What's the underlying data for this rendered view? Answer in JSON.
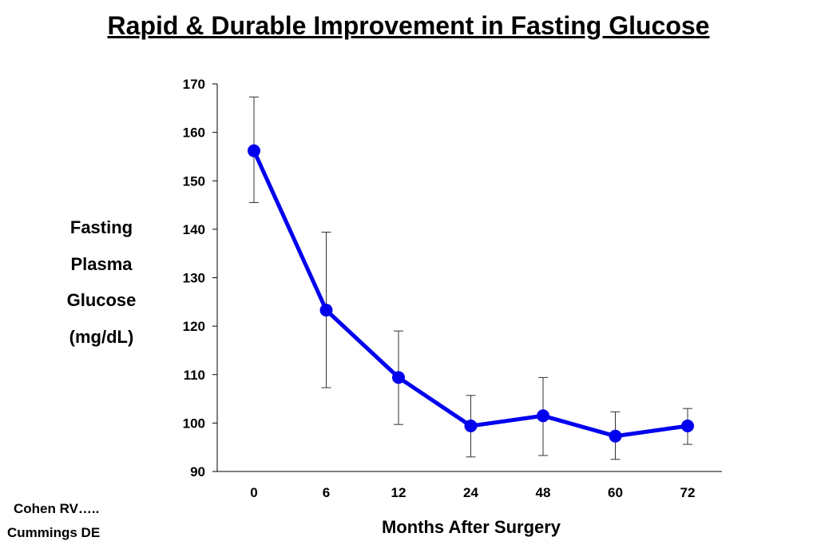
{
  "title": "Rapid & Durable Improvement in Fasting Glucose",
  "citations": [
    "Cohen RV…..",
    "Cummings DE"
  ],
  "colors": {
    "series": "#0000ee",
    "axis": "#000000"
  },
  "chart_data": {
    "type": "line",
    "title": "Rapid & Durable Improvement in Fasting Glucose",
    "xlabel": "Months After Surgery",
    "ylabel_lines": [
      "Fasting",
      "Plasma",
      "Glucose",
      "(mg/dL)"
    ],
    "categories": [
      "0",
      "6",
      "12",
      "24",
      "48",
      "60",
      "72"
    ],
    "series": [
      {
        "values": [
          156.2,
          123.3,
          109.4,
          99.4,
          101.5,
          97.3,
          99.4
        ],
        "error_upper": [
          167.3,
          139.4,
          119.0,
          105.7,
          109.4,
          102.3,
          103.0
        ],
        "error_lower": [
          145.5,
          107.3,
          99.7,
          93.0,
          93.3,
          92.5,
          95.6
        ]
      }
    ],
    "ylim": [
      90,
      170
    ],
    "yticks": [
      90,
      100,
      110,
      120,
      130,
      140,
      150,
      160,
      170
    ],
    "grid": false,
    "legend": "none"
  }
}
